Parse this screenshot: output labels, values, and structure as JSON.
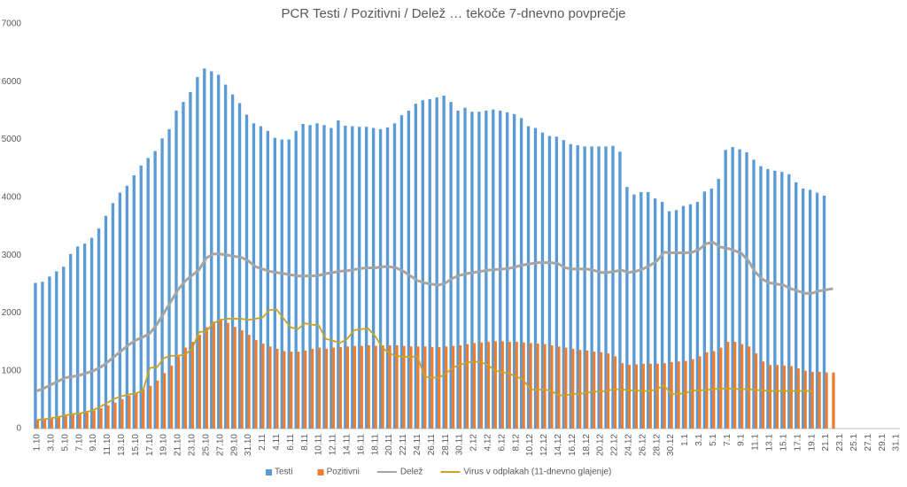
{
  "chart_data": {
    "type": "bar",
    "title": "PCR Testi / Pozitivni / Delež … tekoče 7-dnevno povprečje",
    "categories": [
      "1.10",
      null,
      "3.10",
      null,
      "5.10",
      null,
      "7.10",
      null,
      "9.10",
      null,
      "11.10",
      null,
      "13.10",
      null,
      "15.10",
      null,
      "17.10",
      null,
      "19.10",
      null,
      "21.10",
      null,
      "23.10",
      null,
      "25.10",
      null,
      "27.10",
      null,
      "29.10",
      null,
      "31.10",
      null,
      "2.11",
      null,
      "4.11",
      null,
      "6.11",
      null,
      "8.11",
      null,
      "10.11",
      null,
      "12.11",
      null,
      "14.11",
      null,
      "16.11",
      null,
      "18.11",
      null,
      "20.11",
      null,
      "22.11",
      null,
      "24.11",
      null,
      "26.11",
      null,
      "28.11",
      null,
      "30.11",
      null,
      "2.12",
      null,
      "4.12",
      null,
      "6.12",
      null,
      "8.12",
      null,
      "10.12",
      null,
      "12.12",
      null,
      "14.12",
      null,
      "16.12",
      null,
      "18.12",
      null,
      "20.12",
      null,
      "22.12",
      null,
      "24.12",
      null,
      "26.12",
      null,
      "28.12",
      null,
      "30.12",
      null,
      "1.1",
      null,
      "3.1",
      null,
      "5.1",
      null,
      "7.1",
      null,
      "9.1",
      null,
      "11.1",
      null,
      "13.1",
      null,
      "15.1",
      null,
      "17.1",
      null,
      "19.1",
      null,
      "21.1",
      null,
      "23.1",
      null,
      "25.1",
      null,
      "27.1",
      null,
      "29.1",
      null,
      "31.1"
    ],
    "series": [
      {
        "name": "Testi",
        "type": "bar",
        "color": "#5b9bd5",
        "values": [
          2520,
          2540,
          2630,
          2720,
          2800,
          3020,
          3150,
          3200,
          3300,
          3460,
          3680,
          3900,
          4080,
          4200,
          4380,
          4550,
          4680,
          4800,
          5020,
          5180,
          5500,
          5650,
          5820,
          6080,
          6230,
          6180,
          6120,
          5950,
          5780,
          5630,
          5430,
          5280,
          5230,
          5150,
          5030,
          5000,
          5000,
          5150,
          5270,
          5250,
          5280,
          5250,
          5200,
          5330,
          5240,
          5230,
          5220,
          5220,
          5200,
          5180,
          5210,
          5280,
          5420,
          5500,
          5620,
          5680,
          5700,
          5730,
          5760,
          5650,
          5500,
          5550,
          5480,
          5480,
          5500,
          5520,
          5500,
          5470,
          5440,
          5370,
          5230,
          5200,
          5120,
          5060,
          5050,
          4990,
          4920,
          4900,
          4880,
          4880,
          4880,
          4880,
          4890,
          4790,
          4180,
          4050,
          4090,
          4090,
          3980,
          3920,
          3760,
          3780,
          3850,
          3880,
          3920,
          4100,
          4150,
          4320,
          4820,
          4870,
          4830,
          4780,
          4650,
          4540,
          4490,
          4460,
          4440,
          4400,
          4260,
          4150,
          4130,
          4080,
          4030,
          null,
          null,
          null,
          null,
          null,
          null,
          null,
          null,
          null,
          null
        ]
      },
      {
        "name": "Pozitivni",
        "type": "bar",
        "color": "#ed7d31",
        "values": [
          150,
          160,
          170,
          200,
          220,
          240,
          260,
          280,
          310,
          350,
          400,
          450,
          510,
          570,
          620,
          680,
          740,
          830,
          960,
          1090,
          1250,
          1400,
          1500,
          1620,
          1750,
          1850,
          1870,
          1830,
          1760,
          1700,
          1620,
          1530,
          1470,
          1420,
          1380,
          1340,
          1330,
          1330,
          1350,
          1380,
          1400,
          1380,
          1400,
          1410,
          1420,
          1430,
          1430,
          1440,
          1430,
          1440,
          1440,
          1440,
          1430,
          1420,
          1420,
          1420,
          1410,
          1410,
          1420,
          1430,
          1440,
          1460,
          1480,
          1490,
          1500,
          1510,
          1510,
          1500,
          1500,
          1490,
          1480,
          1470,
          1460,
          1440,
          1420,
          1400,
          1380,
          1360,
          1350,
          1330,
          1320,
          1300,
          1250,
          1130,
          1100,
          1110,
          1120,
          1120,
          1120,
          1130,
          1150,
          1160,
          1170,
          1200,
          1250,
          1320,
          1340,
          1400,
          1500,
          1500,
          1460,
          1420,
          1300,
          1160,
          1100,
          1100,
          1090,
          1080,
          1040,
          1000,
          980,
          980,
          970,
          970,
          null,
          null,
          null,
          null,
          null,
          null,
          null,
          null,
          null
        ]
      },
      {
        "name": "Delež",
        "type": "line",
        "color": "#a5a5a5",
        "values": [
          650,
          700,
          760,
          820,
          880,
          900,
          920,
          960,
          1000,
          1060,
          1150,
          1250,
          1350,
          1450,
          1530,
          1580,
          1650,
          1800,
          2000,
          2200,
          2400,
          2550,
          2650,
          2750,
          2950,
          3020,
          3020,
          3000,
          2980,
          2960,
          2900,
          2800,
          2760,
          2720,
          2700,
          2680,
          2660,
          2640,
          2640,
          2640,
          2650,
          2680,
          2700,
          2720,
          2730,
          2750,
          2770,
          2780,
          2780,
          2800,
          2800,
          2780,
          2720,
          2640,
          2560,
          2520,
          2500,
          2480,
          2520,
          2600,
          2650,
          2680,
          2700,
          2720,
          2740,
          2750,
          2760,
          2770,
          2800,
          2830,
          2850,
          2870,
          2870,
          2870,
          2850,
          2780,
          2760,
          2760,
          2760,
          2740,
          2700,
          2700,
          2720,
          2740,
          2700,
          2720,
          2760,
          2820,
          2900,
          3050,
          3040,
          3040,
          3040,
          3050,
          3100,
          3200,
          3220,
          3140,
          3120,
          3080,
          3030,
          2900,
          2700,
          2580,
          2520,
          2500,
          2480,
          2420,
          2380,
          2340,
          2340,
          2380,
          2400,
          2420,
          null,
          null,
          null,
          null,
          null,
          null,
          null,
          null,
          null
        ]
      },
      {
        "name": "Virus v odplakah (11-dnevno glajenje)",
        "type": "line",
        "color": "#c9a227",
        "values": [
          150,
          160,
          180,
          200,
          230,
          250,
          260,
          290,
          320,
          380,
          450,
          520,
          560,
          590,
          610,
          650,
          1050,
          1060,
          1220,
          1260,
          1260,
          1280,
          1380,
          1670,
          1680,
          1820,
          1880,
          1900,
          1900,
          1900,
          1880,
          1900,
          1920,
          2050,
          2060,
          1900,
          1750,
          1720,
          1820,
          1800,
          1780,
          1550,
          1520,
          1480,
          1550,
          1700,
          1720,
          1730,
          1600,
          1400,
          1300,
          1260,
          1240,
          1240,
          1250,
          900,
          880,
          880,
          950,
          1050,
          1100,
          1140,
          1160,
          1150,
          1100,
          1000,
          980,
          950,
          900,
          850,
          680,
          670,
          680,
          650,
          580,
          570,
          600,
          600,
          620,
          640,
          640,
          660,
          680,
          680,
          660,
          660,
          650,
          650,
          680,
          750,
          600,
          600,
          610,
          660,
          660,
          670,
          680,
          690,
          690,
          690,
          680,
          680,
          670,
          660,
          650,
          650,
          650,
          650,
          650,
          650,
          650,
          null,
          null,
          null,
          null,
          null,
          null,
          null,
          null,
          null,
          null,
          null,
          null
        ]
      }
    ],
    "ylim": [
      0,
      7000
    ],
    "yticks": [
      0,
      1000,
      2000,
      3000,
      4000,
      5000,
      6000,
      7000
    ],
    "grid": false,
    "legend": "bottom"
  }
}
